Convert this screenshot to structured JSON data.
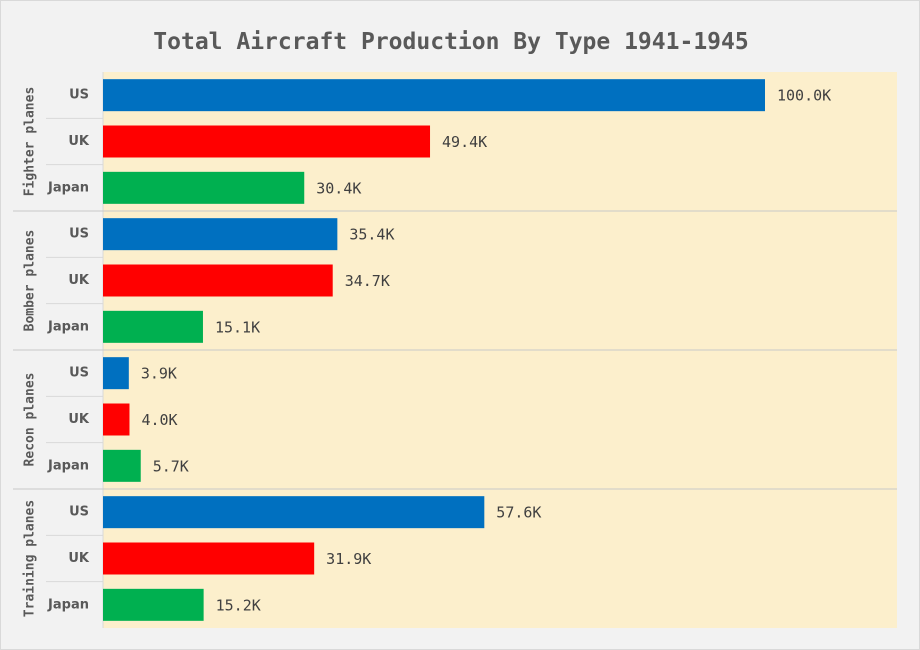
{
  "chart_data": {
    "type": "bar",
    "orientation": "horizontal",
    "title": "Total Aircraft Production By Type 1941-1945",
    "groups": [
      {
        "label": "Fighter planes",
        "categories": [
          "US",
          "UK",
          "Japan"
        ],
        "values": [
          100.0,
          49.4,
          30.4
        ],
        "labels": [
          "100.0K",
          "49.4K",
          "30.4K"
        ]
      },
      {
        "label": "Bomber planes",
        "categories": [
          "US",
          "UK",
          "Japan"
        ],
        "values": [
          35.4,
          34.7,
          15.1
        ],
        "labels": [
          "35.4K",
          "34.7K",
          "15.1K"
        ]
      },
      {
        "label": "Recon planes",
        "categories": [
          "US",
          "UK",
          "Japan"
        ],
        "values": [
          3.9,
          4.0,
          5.7
        ],
        "labels": [
          "3.9K",
          "4.0K",
          "5.7K"
        ]
      },
      {
        "label": "Training planes",
        "categories": [
          "US",
          "UK",
          "Japan"
        ],
        "values": [
          57.6,
          31.9,
          15.2
        ],
        "labels": [
          "57.6K",
          "31.9K",
          "15.2K"
        ]
      }
    ],
    "unit": "K",
    "xlim": [
      0,
      120
    ],
    "colors": {
      "US": "#0070c0",
      "UK": "#ff0000",
      "Japan": "#00b050"
    },
    "plot_background": "#fcefcc",
    "grid": false,
    "legend": "none"
  }
}
